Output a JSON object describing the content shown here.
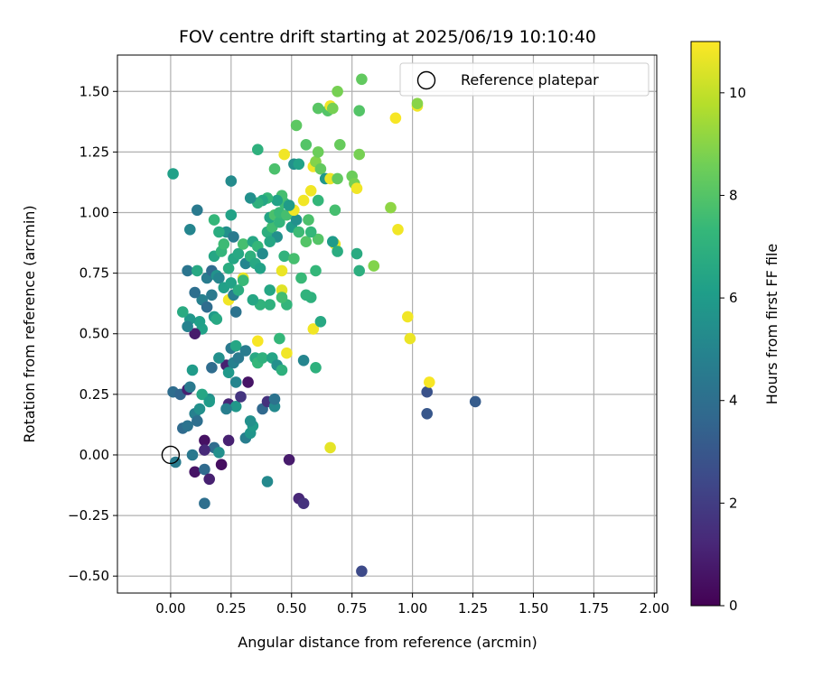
{
  "chart_data": {
    "type": "scatter",
    "title": "FOV centre drift starting at 2025/06/19 10:10:40",
    "xlabel": "Angular distance from reference (arcmin)",
    "ylabel": "Rotation from reference (arcmin)",
    "xlim": [
      -0.22,
      2.01
    ],
    "ylim": [
      -0.57,
      1.65
    ],
    "xticks": [
      0.0,
      0.25,
      0.5,
      0.75,
      1.0,
      1.25,
      1.5,
      1.75,
      2.0
    ],
    "xtick_labels": [
      "0.00",
      "0.25",
      "0.50",
      "0.75",
      "1.00",
      "1.25",
      "1.50",
      "1.75",
      "2.00"
    ],
    "yticks": [
      -0.5,
      -0.25,
      0.0,
      0.25,
      0.5,
      0.75,
      1.0,
      1.25,
      1.5
    ],
    "ytick_labels": [
      "−0.50",
      "−0.25",
      "0.00",
      "0.25",
      "0.50",
      "0.75",
      "1.00",
      "1.25",
      "1.50"
    ],
    "grid": true,
    "legend": {
      "position": "top-right",
      "entries": [
        {
          "label": "Reference platepar",
          "marker": "open-circle"
        }
      ]
    },
    "reference_point": {
      "x": 0.0,
      "y": 0.0
    },
    "colorbar": {
      "label": "Hours from first FF file",
      "range": [
        0,
        11
      ],
      "ticks": [
        0,
        2,
        4,
        6,
        8,
        10
      ],
      "tick_labels": [
        "0",
        "2",
        "4",
        "6",
        "8",
        "10"
      ],
      "colormap": [
        "#440154",
        "#482878",
        "#3e4989",
        "#31688e",
        "#26828e",
        "#1f9e89",
        "#35b779",
        "#6ece58",
        "#b5de2b",
        "#fde725"
      ]
    },
    "points": [
      [
        0.01,
        0.26,
        3.9
      ],
      [
        0.04,
        0.25,
        3.6
      ],
      [
        0.07,
        0.27,
        1.0
      ],
      [
        0.08,
        0.28,
        4.5
      ],
      [
        0.05,
        0.11,
        3.8
      ],
      [
        0.07,
        0.12,
        4.2
      ],
      [
        0.09,
        0.0,
        4.4
      ],
      [
        0.02,
        -0.03,
        4.6
      ],
      [
        0.1,
        -0.07,
        0.6
      ],
      [
        0.14,
        -0.06,
        3.8
      ],
      [
        0.16,
        -0.1,
        1.0
      ],
      [
        0.14,
        -0.2,
        4.0
      ],
      [
        0.21,
        -0.04,
        0.4
      ],
      [
        0.18,
        0.03,
        3.9
      ],
      [
        0.14,
        0.06,
        0.5
      ],
      [
        0.14,
        0.02,
        1.3
      ],
      [
        0.2,
        0.01,
        5.5
      ],
      [
        0.24,
        0.06,
        1.0
      ],
      [
        0.16,
        0.23,
        5.5
      ],
      [
        0.13,
        0.25,
        6.5
      ],
      [
        0.16,
        0.22,
        6.0
      ],
      [
        0.1,
        0.17,
        4.8
      ],
      [
        0.12,
        0.19,
        5.5
      ],
      [
        0.11,
        0.14,
        4.0
      ],
      [
        0.24,
        0.21,
        1.2
      ],
      [
        0.27,
        0.2,
        5.8
      ],
      [
        0.23,
        0.19,
        4.7
      ],
      [
        0.29,
        0.24,
        1.7
      ],
      [
        0.32,
        0.3,
        0.6
      ],
      [
        0.31,
        0.07,
        4.7
      ],
      [
        0.33,
        0.09,
        5.7
      ],
      [
        0.34,
        0.12,
        6.0
      ],
      [
        0.33,
        0.14,
        5.5
      ],
      [
        0.38,
        0.19,
        3.7
      ],
      [
        0.4,
        0.22,
        1.6
      ],
      [
        0.43,
        0.2,
        5.2
      ],
      [
        0.43,
        0.23,
        4.2
      ],
      [
        0.4,
        -0.11,
        5.2
      ],
      [
        0.49,
        -0.02,
        0.8
      ],
      [
        0.53,
        -0.18,
        1.2
      ],
      [
        0.55,
        -0.2,
        1.6
      ],
      [
        0.79,
        -0.48,
        2.5
      ],
      [
        1.06,
        0.26,
        2.8
      ],
      [
        1.06,
        0.17,
        3.0
      ],
      [
        1.26,
        0.22,
        3.2
      ],
      [
        1.07,
        0.3,
        10.9
      ],
      [
        0.66,
        0.03,
        10.6
      ],
      [
        0.98,
        0.57,
        10.8
      ],
      [
        0.99,
        0.48,
        10.7
      ],
      [
        0.94,
        0.93,
        10.8
      ],
      [
        0.93,
        1.39,
        10.9
      ],
      [
        1.02,
        1.44,
        10.8
      ],
      [
        1.02,
        1.45,
        9.0
      ],
      [
        0.91,
        1.02,
        9.1
      ],
      [
        0.84,
        0.78,
        8.9
      ],
      [
        0.78,
        0.76,
        6.9
      ],
      [
        0.77,
        0.83,
        6.7
      ],
      [
        0.68,
        0.87,
        10.7
      ],
      [
        0.67,
        0.88,
        6.0
      ],
      [
        0.61,
        0.89,
        8.0
      ],
      [
        0.59,
        0.52,
        10.8
      ],
      [
        0.6,
        0.76,
        7.3
      ],
      [
        0.62,
        0.55,
        6.6
      ],
      [
        0.58,
        0.65,
        7.0
      ],
      [
        0.56,
        0.66,
        7.1
      ],
      [
        0.55,
        0.39,
        5.0
      ],
      [
        0.6,
        0.36,
        7.0
      ],
      [
        0.48,
        0.42,
        10.8
      ],
      [
        0.48,
        0.62,
        7.2
      ],
      [
        0.46,
        0.68,
        10.5
      ],
      [
        0.46,
        0.65,
        7.6
      ],
      [
        0.46,
        0.76,
        10.7
      ],
      [
        0.47,
        0.82,
        7.1
      ],
      [
        0.51,
        0.81,
        7.7
      ],
      [
        0.54,
        0.73,
        7.4
      ],
      [
        0.41,
        0.62,
        7.0
      ],
      [
        0.41,
        0.68,
        6.5
      ],
      [
        0.37,
        0.62,
        7.1
      ],
      [
        0.34,
        0.64,
        6.5
      ],
      [
        0.36,
        0.47,
        10.9
      ],
      [
        0.35,
        0.4,
        6.6
      ],
      [
        0.36,
        0.38,
        7.3
      ],
      [
        0.38,
        0.4,
        7.0
      ],
      [
        0.42,
        0.4,
        6.4
      ],
      [
        0.44,
        0.37,
        5.5
      ],
      [
        0.46,
        0.35,
        7.0
      ],
      [
        0.45,
        0.48,
        7.3
      ],
      [
        0.23,
        0.37,
        1.0
      ],
      [
        0.24,
        0.34,
        5.9
      ],
      [
        0.26,
        0.38,
        4.8
      ],
      [
        0.25,
        0.44,
        4.5
      ],
      [
        0.27,
        0.45,
        6.5
      ],
      [
        0.28,
        0.4,
        4.5
      ],
      [
        0.31,
        0.43,
        4.6
      ],
      [
        0.27,
        0.3,
        5.0
      ],
      [
        0.17,
        0.36,
        3.9
      ],
      [
        0.2,
        0.4,
        5.5
      ],
      [
        0.09,
        0.35,
        6.0
      ],
      [
        0.13,
        0.52,
        6.3
      ],
      [
        0.1,
        0.5,
        0.8
      ],
      [
        0.12,
        0.55,
        6.2
      ],
      [
        0.08,
        0.56,
        5.8
      ],
      [
        0.07,
        0.53,
        4.9
      ],
      [
        0.05,
        0.59,
        6.7
      ],
      [
        0.13,
        0.64,
        4.8
      ],
      [
        0.15,
        0.61,
        3.9
      ],
      [
        0.18,
        0.57,
        6.0
      ],
      [
        0.19,
        0.56,
        6.6
      ],
      [
        0.1,
        0.67,
        4.0
      ],
      [
        0.17,
        0.66,
        4.5
      ],
      [
        0.07,
        0.76,
        4.3
      ],
      [
        0.11,
        0.76,
        6.6
      ],
      [
        0.15,
        0.73,
        4.6
      ],
      [
        0.17,
        0.76,
        3.8
      ],
      [
        0.19,
        0.74,
        5.6
      ],
      [
        0.2,
        0.73,
        5.0
      ],
      [
        0.22,
        0.69,
        6.2
      ],
      [
        0.24,
        0.64,
        10.8
      ],
      [
        0.26,
        0.66,
        4.7
      ],
      [
        0.27,
        0.59,
        4.2
      ],
      [
        0.25,
        0.71,
        6.3
      ],
      [
        0.28,
        0.68,
        6.8
      ],
      [
        0.3,
        0.73,
        10.7
      ],
      [
        0.3,
        0.72,
        7.4
      ],
      [
        0.18,
        0.82,
        6.5
      ],
      [
        0.21,
        0.84,
        7.2
      ],
      [
        0.22,
        0.87,
        7.5
      ],
      [
        0.23,
        0.92,
        5.5
      ],
      [
        0.2,
        0.92,
        6.8
      ],
      [
        0.24,
        0.77,
        6.8
      ],
      [
        0.26,
        0.81,
        6.5
      ],
      [
        0.26,
        0.9,
        4.5
      ],
      [
        0.28,
        0.83,
        6.6
      ],
      [
        0.3,
        0.87,
        7.7
      ],
      [
        0.31,
        0.79,
        5.0
      ],
      [
        0.34,
        0.88,
        6.5
      ],
      [
        0.33,
        0.82,
        7.0
      ],
      [
        0.35,
        0.79,
        6.6
      ],
      [
        0.36,
        0.86,
        7.3
      ],
      [
        0.37,
        0.77,
        6.3
      ],
      [
        0.38,
        0.83,
        5.3
      ],
      [
        0.4,
        0.92,
        6.9
      ],
      [
        0.42,
        0.94,
        7.6
      ],
      [
        0.44,
        0.9,
        5.5
      ],
      [
        0.41,
        0.88,
        6.5
      ],
      [
        0.41,
        0.98,
        6.4
      ],
      [
        0.43,
        0.99,
        7.8
      ],
      [
        0.45,
        0.96,
        7.2
      ],
      [
        0.45,
        1.0,
        7.4
      ],
      [
        0.47,
        1.04,
        7.5
      ],
      [
        0.48,
        0.99,
        7.7
      ],
      [
        0.5,
        0.94,
        6.0
      ],
      [
        0.53,
        0.92,
        7.5
      ],
      [
        0.52,
        0.97,
        5.5
      ],
      [
        0.56,
        0.88,
        8.0
      ],
      [
        0.58,
        0.92,
        7.3
      ],
      [
        0.57,
        0.97,
        7.8
      ],
      [
        0.55,
        1.05,
        10.8
      ],
      [
        0.58,
        1.09,
        10.8
      ],
      [
        0.61,
        1.05,
        7.3
      ],
      [
        0.51,
        1.01,
        10.8
      ],
      [
        0.49,
        1.03,
        6.0
      ],
      [
        0.46,
        1.07,
        7.7
      ],
      [
        0.44,
        1.05,
        6.3
      ],
      [
        0.4,
        1.06,
        7.3
      ],
      [
        0.38,
        1.05,
        6.5
      ],
      [
        0.36,
        1.04,
        7.0
      ],
      [
        0.33,
        1.06,
        5.5
      ],
      [
        0.25,
        0.99,
        6.3
      ],
      [
        0.18,
        0.97,
        7.3
      ],
      [
        0.11,
        1.01,
        4.5
      ],
      [
        0.08,
        0.93,
        5.0
      ],
      [
        0.25,
        1.13,
        5.3
      ],
      [
        0.01,
        1.16,
        6.2
      ],
      [
        0.43,
        1.18,
        7.8
      ],
      [
        0.47,
        1.24,
        10.8
      ],
      [
        0.51,
        1.2,
        5.5
      ],
      [
        0.53,
        1.2,
        6.3
      ],
      [
        0.56,
        1.28,
        8.0
      ],
      [
        0.59,
        1.19,
        10.8
      ],
      [
        0.6,
        1.21,
        8.9
      ],
      [
        0.61,
        1.25,
        8.5
      ],
      [
        0.62,
        1.18,
        8.3
      ],
      [
        0.64,
        1.14,
        5.8
      ],
      [
        0.66,
        1.14,
        10.7
      ],
      [
        0.69,
        1.14,
        8.3
      ],
      [
        0.7,
        1.28,
        8.4
      ],
      [
        0.75,
        1.15,
        8.5
      ],
      [
        0.76,
        1.12,
        8.7
      ],
      [
        0.77,
        1.1,
        10.8
      ],
      [
        0.78,
        1.24,
        8.7
      ],
      [
        0.78,
        1.42,
        8.0
      ],
      [
        0.52,
        1.36,
        8.2
      ],
      [
        0.61,
        1.43,
        8.1
      ],
      [
        0.65,
        1.42,
        8.0
      ],
      [
        0.66,
        1.44,
        10.8
      ],
      [
        0.67,
        1.43,
        8.7
      ],
      [
        0.69,
        1.5,
        8.7
      ],
      [
        0.79,
        1.55,
        8.3
      ],
      [
        0.36,
        1.26,
        7.0
      ],
      [
        0.68,
        1.01,
        7.7
      ],
      [
        0.69,
        0.84,
        6.8
      ]
    ]
  }
}
